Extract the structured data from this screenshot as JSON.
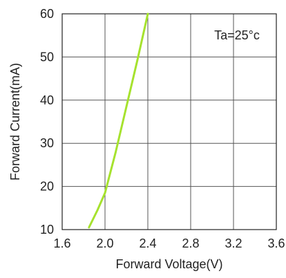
{
  "chart_data": {
    "type": "line",
    "title": "",
    "xlabel": "Forward Voltage(V)",
    "ylabel": "Forward Current(mA)",
    "annotation": "Ta=25°c",
    "xlim": [
      1.6,
      3.6
    ],
    "ylim": [
      10,
      60
    ],
    "x_ticks": [
      "1.6",
      "2.0",
      "2.4",
      "2.8",
      "3.2",
      "3.6"
    ],
    "y_ticks": [
      "10",
      "20",
      "30",
      "40",
      "50",
      "60"
    ],
    "grid": true,
    "series": [
      {
        "color": "#a6e22e",
        "x": [
          1.85,
          1.93,
          2.0,
          2.1,
          2.2,
          2.3,
          2.4
        ],
        "y": [
          10.5,
          14.5,
          18.5,
          28,
          38.5,
          49,
          60
        ]
      }
    ]
  }
}
